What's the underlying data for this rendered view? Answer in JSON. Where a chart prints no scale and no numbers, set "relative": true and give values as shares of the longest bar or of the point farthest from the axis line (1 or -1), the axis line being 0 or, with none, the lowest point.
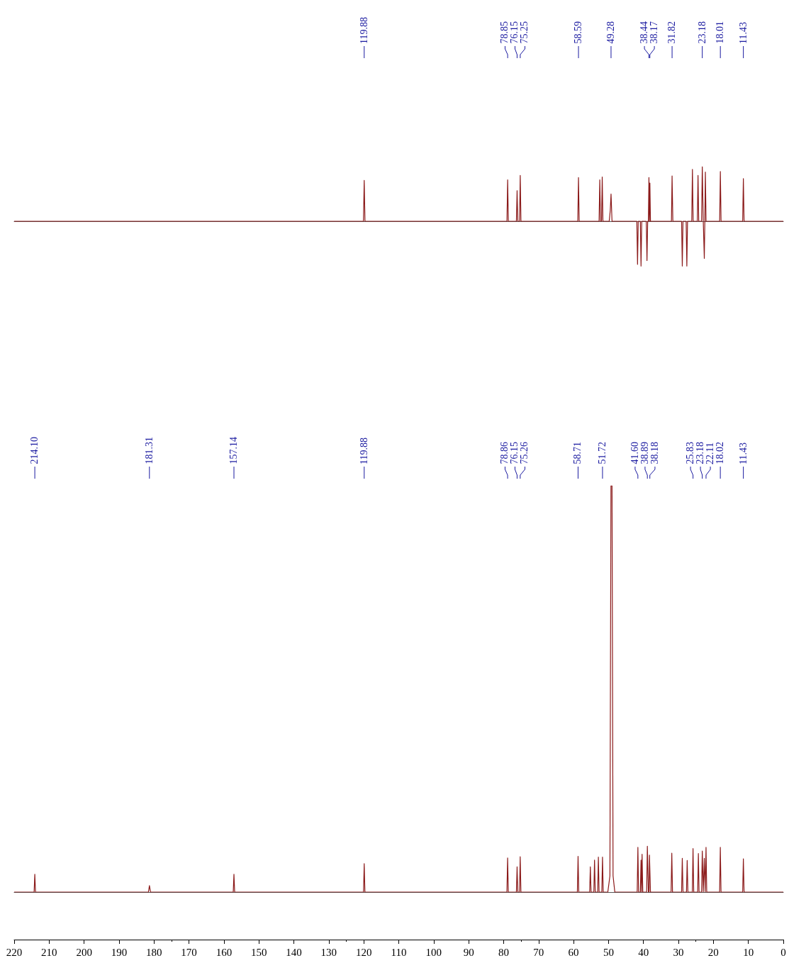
{
  "chart_data": [
    {
      "type": "line",
      "relative": true,
      "tick_labels": false,
      "xlim": [
        220,
        0
      ],
      "marker": "none",
      "series": [
        {
          "color": "#8b1a1a",
          "x": [
            220,
            120.1,
            119.88,
            119.66,
            79.05,
            78.85,
            78.65,
            76.35,
            76.15,
            75.95,
            75.45,
            75.25,
            75.05,
            58.79,
            58.59,
            58.39,
            52.7,
            52.5,
            52.3,
            52.0,
            51.8,
            51.6,
            49.8,
            49.5,
            49.28,
            49.0,
            41.9,
            41.7,
            41.5,
            40.9,
            40.7,
            40.5,
            39.2,
            39.0,
            38.8,
            38.6,
            38.44,
            38.3,
            38.17,
            38.0,
            32.0,
            31.82,
            31.6,
            29.1,
            28.9,
            28.7,
            27.8,
            27.6,
            27.4,
            26.2,
            26.0,
            25.8,
            24.6,
            24.4,
            24.2,
            23.38,
            23.18,
            22.9,
            22.6,
            22.45,
            22.3,
            22.1,
            18.21,
            18.01,
            17.81,
            11.63,
            11.43,
            11.23,
            0
          ],
          "values": [
            0,
            0,
            0.75,
            0,
            0,
            0.76,
            0,
            0,
            0.56,
            0,
            0,
            0.84,
            0,
            0,
            0.8,
            0,
            0,
            0.76,
            0,
            0,
            0.81,
            0,
            0,
            0.2,
            0.5,
            0,
            0,
            -0.79,
            0,
            0,
            -0.82,
            0,
            0,
            -0.72,
            0,
            0,
            0.8,
            0,
            0.7,
            0,
            0,
            0.83,
            0,
            0,
            -0.82,
            0,
            0,
            -0.82,
            0,
            0,
            0.95,
            0,
            0,
            0.84,
            0,
            0,
            1,
            0,
            -0.68,
            0,
            0.9,
            0,
            0,
            0.91,
            0,
            0,
            0.78,
            0,
            0
          ]
        }
      ],
      "annotations": [
        {
          "text": "119.88",
          "x": 119.88
        },
        {
          "text": "78.85",
          "x": 78.85
        },
        {
          "text": "76.15",
          "x": 76.15
        },
        {
          "text": "75.25",
          "x": 75.25
        },
        {
          "text": "58.59",
          "x": 58.59
        },
        {
          "text": "49.28",
          "x": 49.28
        },
        {
          "text": "38.44",
          "x": 38.44
        },
        {
          "text": "38.17",
          "x": 38.17
        },
        {
          "text": "31.82",
          "x": 31.82
        },
        {
          "text": "23.18",
          "x": 23.18
        },
        {
          "text": "18.01",
          "x": 18.01
        },
        {
          "text": "11.43",
          "x": 11.43
        }
      ]
    },
    {
      "type": "line",
      "relative": true,
      "xlim": [
        220,
        0
      ],
      "marker": "none",
      "xticks": [
        220,
        210,
        200,
        190,
        180,
        170,
        160,
        150,
        140,
        130,
        120,
        110,
        100,
        90,
        80,
        70,
        60,
        50,
        40,
        30,
        20,
        10,
        0
      ],
      "series": [
        {
          "color": "#8b1a1a",
          "x": [
            220,
            214.3,
            214.1,
            213.9,
            181.6,
            181.31,
            181.0,
            157.34,
            157.14,
            156.94,
            120.08,
            119.88,
            119.68,
            79.06,
            78.86,
            78.66,
            76.35,
            76.15,
            75.95,
            75.46,
            75.26,
            75.06,
            58.91,
            58.71,
            58.51,
            55.4,
            55.2,
            55.0,
            54.2,
            54.0,
            53.8,
            53.1,
            52.9,
            52.7,
            51.92,
            51.72,
            51.52,
            50.2,
            49.6,
            49.3,
            49.0,
            48.7,
            48.2,
            41.8,
            41.6,
            41.4,
            40.9,
            40.7,
            40.55,
            40.4,
            40.2,
            39.09,
            38.89,
            38.6,
            38.4,
            38.29,
            38.18,
            38.0,
            32.1,
            31.9,
            31.7,
            29.1,
            28.9,
            28.7,
            27.7,
            27.5,
            27.3,
            26.03,
            25.83,
            25.63,
            24.5,
            24.3,
            24.1,
            23.38,
            23.18,
            22.9,
            22.6,
            22.35,
            22.11,
            21.91,
            18.22,
            18.02,
            17.82,
            11.63,
            11.43,
            11.23,
            0
          ],
          "values": [
            0,
            0,
            0.044,
            0,
            0,
            0.016,
            0,
            0,
            0.044,
            0,
            0,
            0.07,
            0,
            0,
            0.084,
            0,
            0,
            0.062,
            0,
            0,
            0.087,
            0,
            0,
            0.088,
            0,
            0,
            0.062,
            0,
            0,
            0.079,
            0,
            0,
            0.086,
            0,
            0,
            0.086,
            0,
            0,
            0.04,
            1,
            1,
            0.04,
            0,
            0,
            0.11,
            0,
            0,
            0.079,
            0,
            0.093,
            0,
            0,
            0.113,
            0,
            0,
            0.091,
            0.091,
            0,
            0,
            0.096,
            0,
            0,
            0.083,
            0,
            0,
            0.078,
            0,
            0,
            0.107,
            0,
            0,
            0.095,
            0,
            0,
            0.101,
            0,
            0.083,
            0,
            0.11,
            0,
            0,
            0.11,
            0,
            0,
            0.082,
            0,
            0
          ]
        }
      ],
      "annotations": [
        {
          "text": "214.10",
          "x": 214.1
        },
        {
          "text": "181.31",
          "x": 181.31
        },
        {
          "text": "157.14",
          "x": 157.14
        },
        {
          "text": "119.88",
          "x": 119.88
        },
        {
          "text": "78.86",
          "x": 78.86
        },
        {
          "text": "76.15",
          "x": 76.15
        },
        {
          "text": "75.26",
          "x": 75.26
        },
        {
          "text": "58.71",
          "x": 58.71
        },
        {
          "text": "51.72",
          "x": 51.72
        },
        {
          "text": "41.60",
          "x": 41.6
        },
        {
          "text": "38.89",
          "x": 38.89
        },
        {
          "text": "38.18",
          "x": 38.18
        },
        {
          "text": "25.83",
          "x": 25.83
        },
        {
          "text": "23.18",
          "x": 23.18
        },
        {
          "text": "22.11",
          "x": 22.11
        },
        {
          "text": "18.02",
          "x": 18.02
        },
        {
          "text": "11.43",
          "x": 11.43
        }
      ]
    }
  ]
}
